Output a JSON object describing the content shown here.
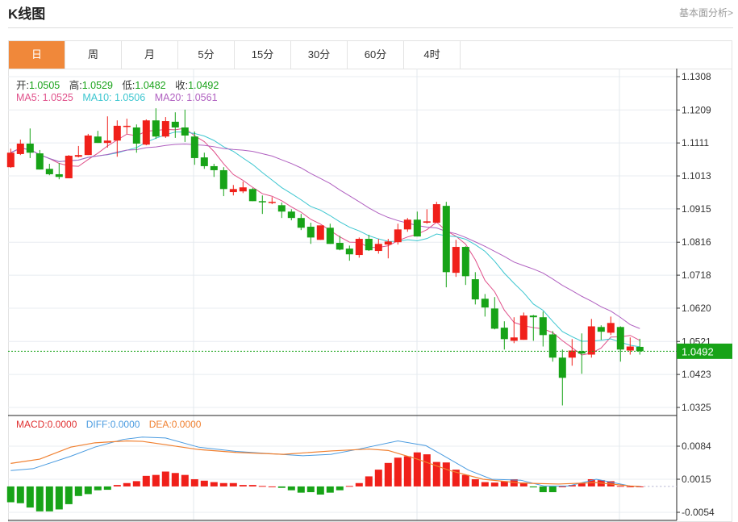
{
  "header": {
    "title": "K线图",
    "link": "基本面分析>"
  },
  "tabs": [
    {
      "label": "日",
      "active": true
    },
    {
      "label": "周"
    },
    {
      "label": "月"
    },
    {
      "label": "5分"
    },
    {
      "label": "15分"
    },
    {
      "label": "30分"
    },
    {
      "label": "60分"
    },
    {
      "label": "4时"
    }
  ],
  "ohlc_info": {
    "open_label": "开:",
    "open": "1.0505",
    "high_label": "高:",
    "high": "1.0529",
    "low_label": "低:",
    "low": "1.0482",
    "close_label": "收:",
    "close": "1.0492"
  },
  "ma_info": {
    "ma5": "MA5: 1.0525",
    "ma10": "MA10: 1.0506",
    "ma20": "MA20: 1.0561"
  },
  "macd_info": {
    "macd": "MACD:0.0000",
    "diff": "DIFF:0.0000",
    "dea": "DEA:0.0000"
  },
  "current_price": "1.0492",
  "colors": {
    "up": "#f0201a",
    "down": "#17a317",
    "ma5": "#e0508a",
    "ma10": "#3cc6d0",
    "ma20": "#b060c0",
    "diff": "#4a9be0",
    "dea": "#f08030",
    "accent": "#f0883a"
  },
  "chart_data": [
    {
      "type": "candlestick",
      "y_ticks": [
        "1.1308",
        "1.1209",
        "1.1111",
        "1.1013",
        "1.0915",
        "1.0816",
        "1.0718",
        "1.0620",
        "1.0521",
        "1.0423",
        "1.0325"
      ],
      "ylim": [
        1.0325,
        1.1308
      ],
      "grid": true,
      "ohlc": [
        [
          1.1039,
          1.1094,
          1.1037,
          1.1082
        ],
        [
          1.1078,
          1.1121,
          1.1075,
          1.1109
        ],
        [
          1.1109,
          1.1154,
          1.1066,
          1.1082
        ],
        [
          1.108,
          1.109,
          1.1032,
          1.1032
        ],
        [
          1.1034,
          1.1049,
          1.1015,
          1.1018
        ],
        [
          1.1018,
          1.1051,
          1.1003,
          1.101
        ],
        [
          1.1006,
          1.1075,
          1.1006,
          1.1073
        ],
        [
          1.107,
          1.1102,
          1.1068,
          1.1075
        ],
        [
          1.1075,
          1.1138,
          1.1075,
          1.1133
        ],
        [
          1.113,
          1.1147,
          1.1111,
          1.1111
        ],
        [
          1.1111,
          1.119,
          1.1097,
          1.1118
        ],
        [
          1.1118,
          1.1178,
          1.107,
          1.1162
        ],
        [
          1.1159,
          1.1183,
          1.1138,
          1.1162
        ],
        [
          1.1157,
          1.1166,
          1.1082,
          1.1109
        ],
        [
          1.1106,
          1.1181,
          1.1104,
          1.1178
        ],
        [
          1.1178,
          1.1214,
          1.1123,
          1.113
        ],
        [
          1.113,
          1.1188,
          1.1126,
          1.1176
        ],
        [
          1.1174,
          1.1202,
          1.1126,
          1.1157
        ],
        [
          1.1157,
          1.121,
          1.1114,
          1.1133
        ],
        [
          1.113,
          1.1145,
          1.1046,
          1.1066
        ],
        [
          1.1068,
          1.1082,
          1.1034,
          1.1042
        ],
        [
          1.1042,
          1.1049,
          1.101,
          1.103
        ],
        [
          1.103,
          1.1039,
          1.0953,
          1.0974
        ],
        [
          1.0965,
          1.0986,
          1.0955,
          1.0974
        ],
        [
          1.0967,
          1.0996,
          1.0962,
          1.0979
        ],
        [
          1.0974,
          1.0977,
          1.0938,
          1.0938
        ],
        [
          1.0938,
          1.0955,
          1.09,
          1.0936
        ],
        [
          1.0934,
          1.095,
          1.0929,
          1.0936
        ],
        [
          1.0926,
          1.0934,
          1.0888,
          1.0907
        ],
        [
          1.0907,
          1.0914,
          1.0881,
          1.0888
        ],
        [
          1.0888,
          1.09,
          1.0852,
          1.0859
        ],
        [
          1.0862,
          1.0874,
          1.0811,
          1.083
        ],
        [
          1.0823,
          1.0866,
          1.0823,
          1.0866
        ],
        [
          1.0859,
          1.0871,
          1.0811,
          1.0811
        ],
        [
          1.0814,
          1.0835,
          1.0792,
          1.0794
        ],
        [
          1.0797,
          1.0806,
          1.0761,
          1.078
        ],
        [
          1.0778,
          1.083,
          1.077,
          1.0826
        ],
        [
          1.0826,
          1.0838,
          1.079,
          1.0792
        ],
        [
          1.079,
          1.0826,
          1.0782,
          1.0811
        ],
        [
          1.0809,
          1.0826,
          1.0768,
          1.0818
        ],
        [
          1.0816,
          1.0871,
          1.0809,
          1.0854
        ],
        [
          1.0854,
          1.0888,
          1.0847,
          1.0883
        ],
        [
          1.0883,
          1.0907,
          1.0833,
          1.0833
        ],
        [
          1.0874,
          1.0914,
          1.0871,
          1.0878
        ],
        [
          1.0874,
          1.0936,
          1.0874,
          1.0929
        ],
        [
          1.0924,
          1.0936,
          1.0682,
          1.0727
        ],
        [
          1.0725,
          1.0823,
          1.0713,
          1.0802
        ],
        [
          1.0802,
          1.0804,
          1.0689,
          1.0715
        ],
        [
          1.0706,
          1.0727,
          1.0631,
          1.0646
        ],
        [
          1.0648,
          1.0662,
          1.0595,
          1.0622
        ],
        [
          1.0619,
          1.0653,
          1.0557,
          1.0559
        ],
        [
          1.0562,
          1.0581,
          1.0497,
          1.0528
        ],
        [
          1.0523,
          1.0593,
          1.0516,
          1.0533
        ],
        [
          1.0526,
          1.0607,
          1.0526,
          1.0598
        ],
        [
          1.0598,
          1.06,
          1.0523,
          1.0593
        ],
        [
          1.0593,
          1.061,
          1.0506,
          1.054
        ],
        [
          1.0542,
          1.0552,
          1.0461,
          1.0473
        ],
        [
          1.0473,
          1.0497,
          1.0331,
          1.0413
        ],
        [
          1.0473,
          1.0528,
          1.0449,
          1.0494
        ],
        [
          1.0492,
          1.0545,
          1.0425,
          1.0485
        ],
        [
          1.0482,
          1.0588,
          1.0473,
          1.0566
        ],
        [
          1.0564,
          1.0569,
          1.0526,
          1.055
        ],
        [
          1.0547,
          1.0595,
          1.054,
          1.0576
        ],
        [
          1.0564,
          1.0566,
          1.0461,
          1.0497
        ],
        [
          1.0494,
          1.0533,
          1.0482,
          1.0506
        ],
        [
          1.0505,
          1.0529,
          1.0482,
          1.0492
        ]
      ],
      "moving_averages": [
        5,
        10,
        20
      ]
    },
    {
      "type": "bar",
      "y_ticks": [
        "0.0084",
        "0.0015",
        "-0.0054"
      ],
      "ylim": [
        -0.0054,
        0.0084
      ],
      "macd": [
        -0.0033,
        -0.0035,
        -0.0044,
        -0.0052,
        -0.0052,
        -0.0048,
        -0.0037,
        -0.002,
        -0.0016,
        -0.0008,
        -0.0007,
        0.0003,
        0.0007,
        0.0011,
        0.0022,
        0.0024,
        0.0031,
        0.0028,
        0.0024,
        0.0015,
        0.0012,
        0.0009,
        0.0007,
        0.0007,
        0.0003,
        0.0003,
        0.0001,
        0.0,
        -0.0003,
        -0.0008,
        -0.0013,
        -0.0012,
        -0.0017,
        -0.0013,
        -0.0008,
        0.0001,
        0.0007,
        0.0021,
        0.0035,
        0.0049,
        0.006,
        0.0063,
        0.0071,
        0.0067,
        0.0051,
        0.005,
        0.0035,
        0.0024,
        0.0015,
        0.0009,
        0.0008,
        0.0011,
        0.0015,
        0.0008,
        -0.0002,
        -0.0012,
        -0.0012,
        0.0,
        0.0003,
        0.0007,
        0.0015,
        0.0013,
        0.0011,
        0.0001,
        0.0,
        0.0
      ],
      "diff": [
        [
          0,
          0.0033
        ],
        [
          2.3,
          0.0037
        ],
        [
          6.2,
          0.0063
        ],
        [
          8.7,
          0.0082
        ],
        [
          11.6,
          0.0098
        ],
        [
          13.6,
          0.0103
        ],
        [
          16,
          0.0101
        ],
        [
          19.4,
          0.0082
        ],
        [
          23.3,
          0.0073
        ],
        [
          26.3,
          0.0069
        ],
        [
          30.2,
          0.0064
        ],
        [
          33.1,
          0.0067
        ],
        [
          36,
          0.0078
        ],
        [
          40,
          0.0095
        ],
        [
          42.9,
          0.0085
        ],
        [
          44.4,
          0.0068
        ],
        [
          47.3,
          0.0034
        ],
        [
          49.7,
          0.0015
        ],
        [
          52.7,
          0.0013
        ],
        [
          55.1,
          0.0001
        ],
        [
          57.6,
          0.0001
        ],
        [
          60.5,
          0.0015
        ],
        [
          62.5,
          0.0007
        ],
        [
          64,
          0.0001
        ],
        [
          65,
          0.0
        ]
      ],
      "dea": [
        [
          0,
          0.0048
        ],
        [
          3,
          0.0057
        ],
        [
          6.2,
          0.0082
        ],
        [
          8.7,
          0.0091
        ],
        [
          12,
          0.0095
        ],
        [
          13.6,
          0.0094
        ],
        [
          16,
          0.0087
        ],
        [
          19.4,
          0.0077
        ],
        [
          23.3,
          0.0071
        ],
        [
          28.2,
          0.0067
        ],
        [
          33.1,
          0.0074
        ],
        [
          37,
          0.0078
        ],
        [
          39,
          0.0075
        ],
        [
          42,
          0.0057
        ],
        [
          45.4,
          0.0033
        ],
        [
          48.8,
          0.0015
        ],
        [
          52.7,
          0.0007
        ],
        [
          56.6,
          0.0005
        ],
        [
          60.5,
          0.0008
        ],
        [
          64,
          0.0001
        ],
        [
          65,
          0.0
        ]
      ]
    }
  ]
}
